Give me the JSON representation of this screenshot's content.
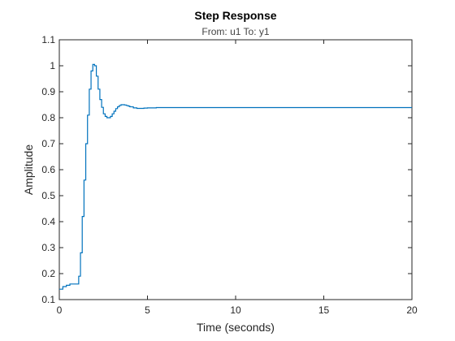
{
  "chart_data": {
    "type": "line",
    "title": "Step Response",
    "subtitle": "From: u1  To: y1",
    "xlabel": "Time (seconds)",
    "ylabel": "Amplitude",
    "xlim": [
      0,
      20
    ],
    "ylim": [
      0.1,
      1.1
    ],
    "xticks": [
      0,
      5,
      10,
      15,
      20
    ],
    "yticks": [
      0.1,
      0.2,
      0.3,
      0.4,
      0.5,
      0.6,
      0.7,
      0.8,
      0.9,
      1,
      1.1
    ],
    "xtick_labels": [
      "0",
      "5",
      "10",
      "15",
      "20"
    ],
    "ytick_labels": [
      "0.1",
      "0.2",
      "0.3",
      "0.4",
      "0.5",
      "0.6",
      "0.7",
      "0.8",
      "0.9",
      "1",
      "1.1"
    ],
    "grid": false,
    "line_color": "#0072BD",
    "series": [
      {
        "step": true,
        "x": [
          0,
          0.2,
          0.4,
          0.6,
          0.8,
          1.0,
          1.1,
          1.2,
          1.3,
          1.4,
          1.5,
          1.6,
          1.7,
          1.8,
          1.9,
          2.0,
          2.1,
          2.2,
          2.3,
          2.4,
          2.5,
          2.6,
          2.7,
          2.8,
          2.9,
          3.0,
          3.1,
          3.2,
          3.3,
          3.4,
          3.5,
          3.6,
          3.7,
          3.8,
          3.9,
          4.0,
          4.2,
          4.4,
          4.6,
          4.8,
          5.0,
          5.5,
          20
        ],
        "y": [
          0.14,
          0.15,
          0.155,
          0.16,
          0.16,
          0.16,
          0.19,
          0.28,
          0.42,
          0.56,
          0.7,
          0.81,
          0.91,
          0.98,
          1.005,
          1.0,
          0.96,
          0.91,
          0.87,
          0.84,
          0.815,
          0.805,
          0.8,
          0.8,
          0.805,
          0.815,
          0.825,
          0.835,
          0.842,
          0.847,
          0.85,
          0.85,
          0.849,
          0.847,
          0.845,
          0.842,
          0.838,
          0.836,
          0.836,
          0.837,
          0.838,
          0.839,
          0.839
        ]
      }
    ]
  }
}
